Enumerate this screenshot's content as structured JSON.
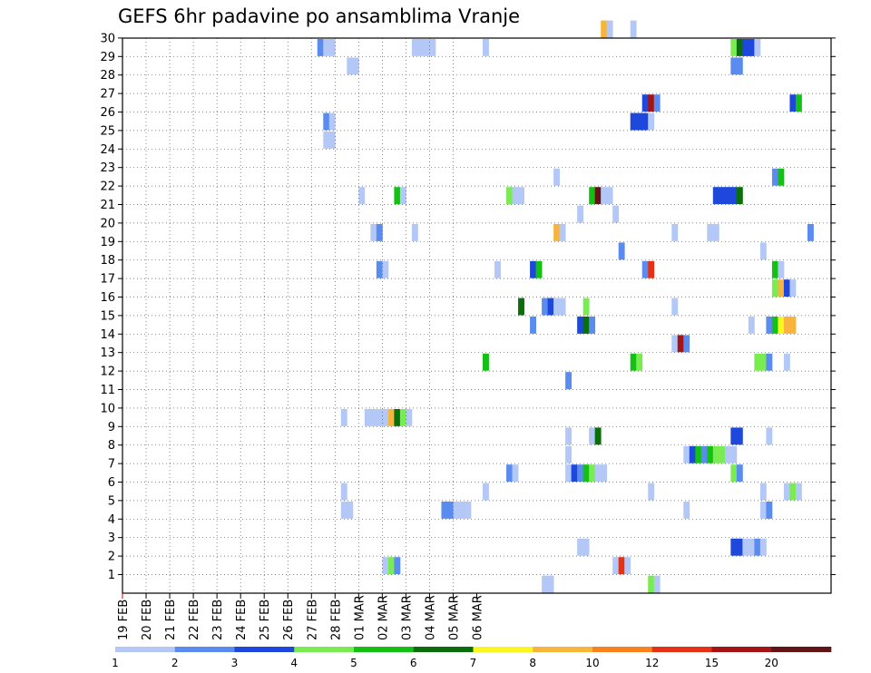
{
  "chart_data": {
    "type": "heatmap",
    "title": "GEFS 6hr padavine po ansamblima Vranje",
    "xlabel": "",
    "ylabel": "",
    "x_ticks": [
      "19 FEB",
      "20 FEB",
      "21 FEB",
      "22 FEB",
      "23 FEB",
      "24 FEB",
      "25 FEB",
      "26 FEB",
      "27 FEB",
      "28 FEB",
      "01 MAR",
      "02 MAR",
      "03 MAR",
      "04 MAR",
      "05 MAR",
      "06 MAR"
    ],
    "y_ticks": [
      1,
      2,
      3,
      4,
      5,
      6,
      7,
      8,
      9,
      10,
      11,
      12,
      13,
      14,
      15,
      16,
      17,
      18,
      19,
      20,
      21,
      22,
      23,
      24,
      25,
      26,
      27,
      28,
      29,
      30
    ],
    "x_unit": "6-hour steps from 19 FEB 00Z",
    "grid": true,
    "colorbar": {
      "labels": [
        "1",
        "2",
        "3",
        "4",
        "5",
        "6",
        "7",
        "8",
        "10",
        "12",
        "15",
        "20"
      ],
      "colors": [
        "#b4c8f8",
        "#5a8cf0",
        "#1e48dc",
        "#78ec50",
        "#14c014",
        "#0a6e0a",
        "#f8f820",
        "#f8b43c",
        "#f8821e",
        "#e63214",
        "#a51414",
        "#641414"
      ]
    },
    "cells": [
      [
        30,
        81,
        7
      ],
      [
        30,
        82,
        0
      ],
      [
        30,
        86,
        0
      ],
      [
        29,
        33,
        1
      ],
      [
        29,
        34,
        0
      ],
      [
        29,
        35,
        0
      ],
      [
        29,
        49,
        0
      ],
      [
        29,
        50,
        0
      ],
      [
        29,
        51,
        0
      ],
      [
        29,
        52,
        0
      ],
      [
        29,
        61,
        0
      ],
      [
        29,
        103,
        3
      ],
      [
        29,
        104,
        5
      ],
      [
        29,
        105,
        2
      ],
      [
        29,
        106,
        2
      ],
      [
        29,
        107,
        0
      ],
      [
        28,
        38,
        0
      ],
      [
        28,
        39,
        0
      ],
      [
        28,
        103,
        1
      ],
      [
        28,
        104,
        1
      ],
      [
        26,
        88,
        2
      ],
      [
        26,
        89,
        10
      ],
      [
        26,
        90,
        1
      ],
      [
        26,
        113,
        2
      ],
      [
        26,
        114,
        4
      ],
      [
        25,
        34,
        1
      ],
      [
        25,
        35,
        0
      ],
      [
        25,
        86,
        2
      ],
      [
        25,
        87,
        2
      ],
      [
        25,
        88,
        2
      ],
      [
        25,
        89,
        0
      ],
      [
        24,
        34,
        0
      ],
      [
        24,
        35,
        0
      ],
      [
        22,
        73,
        0
      ],
      [
        22,
        110,
        1
      ],
      [
        22,
        111,
        4
      ],
      [
        21,
        40,
        0
      ],
      [
        21,
        46,
        4
      ],
      [
        21,
        47,
        0
      ],
      [
        21,
        65,
        3
      ],
      [
        21,
        66,
        0
      ],
      [
        21,
        67,
        0
      ],
      [
        21,
        79,
        4
      ],
      [
        21,
        80,
        11
      ],
      [
        21,
        81,
        0
      ],
      [
        21,
        82,
        0
      ],
      [
        21,
        100,
        2
      ],
      [
        21,
        101,
        2
      ],
      [
        21,
        102,
        2
      ],
      [
        21,
        103,
        2
      ],
      [
        21,
        104,
        5
      ],
      [
        20,
        77,
        0
      ],
      [
        20,
        83,
        0
      ],
      [
        19,
        42,
        0
      ],
      [
        19,
        43,
        1
      ],
      [
        19,
        49,
        0
      ],
      [
        19,
        73,
        7
      ],
      [
        19,
        74,
        0
      ],
      [
        19,
        93,
        0
      ],
      [
        19,
        99,
        0
      ],
      [
        19,
        100,
        0
      ],
      [
        19,
        116,
        1
      ],
      [
        18,
        84,
        1
      ],
      [
        18,
        108,
        0
      ],
      [
        17,
        43,
        1
      ],
      [
        17,
        44,
        0
      ],
      [
        17,
        63,
        0
      ],
      [
        17,
        69,
        2
      ],
      [
        17,
        70,
        4
      ],
      [
        17,
        88,
        1
      ],
      [
        17,
        89,
        9
      ],
      [
        17,
        110,
        4
      ],
      [
        17,
        111,
        0
      ],
      [
        16,
        110,
        3
      ],
      [
        16,
        111,
        7
      ],
      [
        16,
        112,
        2
      ],
      [
        16,
        113,
        0
      ],
      [
        15,
        67,
        5
      ],
      [
        15,
        71,
        1
      ],
      [
        15,
        72,
        2
      ],
      [
        15,
        73,
        0
      ],
      [
        15,
        74,
        0
      ],
      [
        15,
        78,
        3
      ],
      [
        15,
        93,
        0
      ],
      [
        14,
        69,
        1
      ],
      [
        14,
        77,
        2
      ],
      [
        14,
        78,
        5
      ],
      [
        14,
        79,
        1
      ],
      [
        14,
        106,
        0
      ],
      [
        14,
        109,
        1
      ],
      [
        14,
        110,
        4
      ],
      [
        14,
        111,
        6
      ],
      [
        14,
        112,
        7
      ],
      [
        14,
        113,
        7
      ],
      [
        13,
        93,
        0
      ],
      [
        13,
        94,
        10
      ],
      [
        13,
        95,
        1
      ],
      [
        12,
        61,
        4
      ],
      [
        12,
        86,
        4
      ],
      [
        12,
        87,
        3
      ],
      [
        12,
        107,
        3
      ],
      [
        12,
        108,
        3
      ],
      [
        12,
        109,
        1
      ],
      [
        12,
        112,
        0
      ],
      [
        11,
        75,
        1
      ],
      [
        9,
        37,
        0
      ],
      [
        9,
        41,
        0
      ],
      [
        9,
        42,
        0
      ],
      [
        9,
        43,
        0
      ],
      [
        9,
        44,
        0
      ],
      [
        9,
        45,
        7
      ],
      [
        9,
        46,
        5
      ],
      [
        9,
        47,
        3
      ],
      [
        9,
        48,
        0
      ],
      [
        8,
        75,
        0
      ],
      [
        8,
        79,
        0
      ],
      [
        8,
        80,
        5
      ],
      [
        8,
        103,
        2
      ],
      [
        8,
        104,
        2
      ],
      [
        8,
        109,
        0
      ],
      [
        7,
        75,
        0
      ],
      [
        7,
        95,
        0
      ],
      [
        7,
        96,
        2
      ],
      [
        7,
        97,
        4
      ],
      [
        7,
        98,
        1
      ],
      [
        7,
        99,
        4
      ],
      [
        7,
        100,
        3
      ],
      [
        7,
        101,
        3
      ],
      [
        7,
        102,
        0
      ],
      [
        7,
        103,
        0
      ],
      [
        6,
        65,
        1
      ],
      [
        6,
        66,
        0
      ],
      [
        6,
        75,
        0
      ],
      [
        6,
        76,
        2
      ],
      [
        6,
        77,
        1
      ],
      [
        6,
        78,
        4
      ],
      [
        6,
        79,
        3
      ],
      [
        6,
        80,
        0
      ],
      [
        6,
        81,
        0
      ],
      [
        6,
        103,
        3
      ],
      [
        6,
        104,
        1
      ],
      [
        5,
        37,
        0
      ],
      [
        5,
        61,
        0
      ],
      [
        5,
        89,
        0
      ],
      [
        5,
        108,
        0
      ],
      [
        5,
        112,
        0
      ],
      [
        5,
        113,
        3
      ],
      [
        5,
        114,
        0
      ],
      [
        4,
        37,
        0
      ],
      [
        4,
        38,
        0
      ],
      [
        4,
        54,
        1
      ],
      [
        4,
        55,
        1
      ],
      [
        4,
        56,
        0
      ],
      [
        4,
        57,
        0
      ],
      [
        4,
        58,
        0
      ],
      [
        4,
        95,
        0
      ],
      [
        4,
        108,
        0
      ],
      [
        4,
        109,
        1
      ],
      [
        2,
        77,
        0
      ],
      [
        2,
        78,
        0
      ],
      [
        2,
        103,
        2
      ],
      [
        2,
        104,
        2
      ],
      [
        2,
        105,
        0
      ],
      [
        2,
        106,
        0
      ],
      [
        2,
        107,
        1
      ],
      [
        2,
        108,
        0
      ],
      [
        1,
        44,
        0
      ],
      [
        1,
        45,
        3
      ],
      [
        1,
        46,
        1
      ],
      [
        1,
        83,
        0
      ],
      [
        1,
        84,
        9
      ],
      [
        1,
        85,
        0
      ],
      [
        0,
        71,
        0
      ],
      [
        0,
        72,
        0
      ],
      [
        0,
        89,
        3
      ],
      [
        0,
        90,
        0
      ]
    ]
  }
}
